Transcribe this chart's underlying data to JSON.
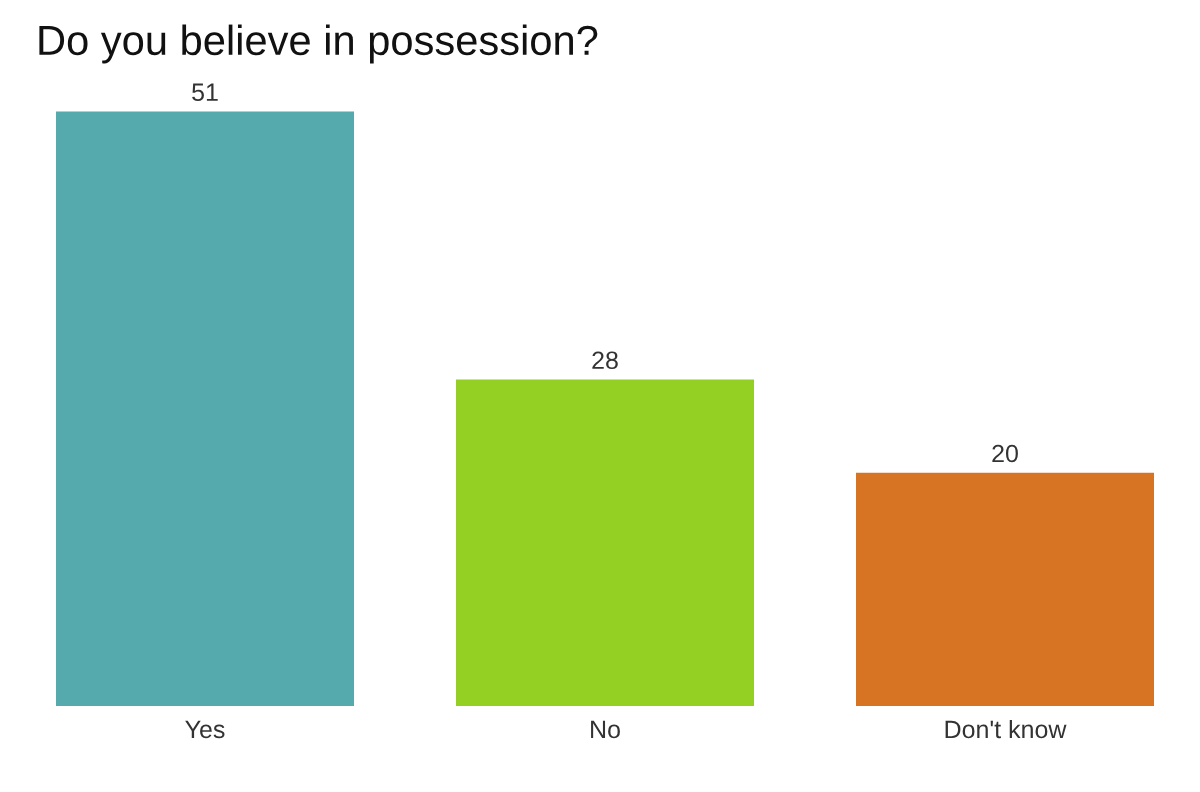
{
  "chart_data": {
    "type": "bar",
    "title": "Do you believe in possession?",
    "categories": [
      "Yes",
      "No",
      "Don't know"
    ],
    "values": [
      51,
      28,
      20
    ],
    "colors": [
      "#55aaae",
      "#94cf24",
      "#d67423"
    ],
    "data_labels": true,
    "grid": false,
    "legend": false
  }
}
